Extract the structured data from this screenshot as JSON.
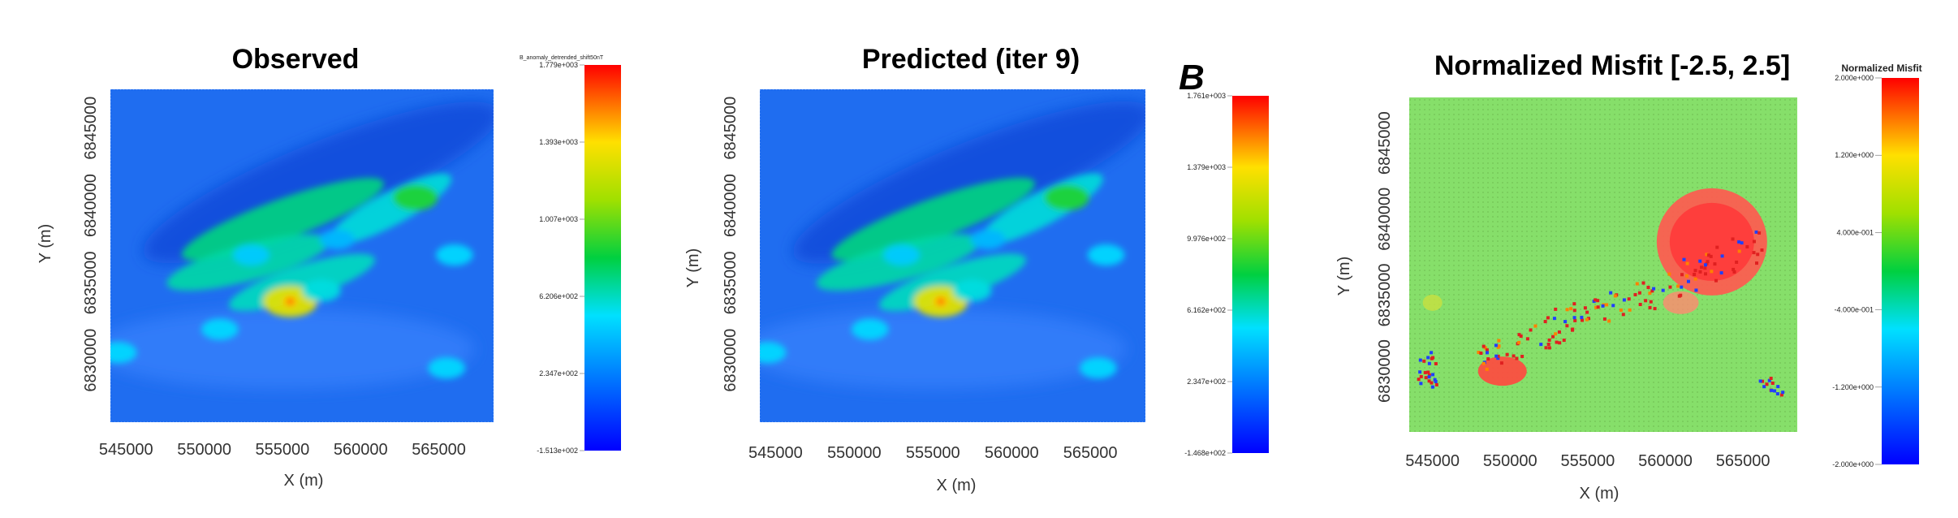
{
  "panel_letter": "B",
  "chart_data": [
    {
      "type": "heatmap",
      "title": "Observed",
      "xlabel": "X (m)",
      "ylabel": "Y (m)",
      "xticks": [
        545000,
        550000,
        555000,
        560000,
        565000
      ],
      "yticks": [
        6830000,
        6835000,
        6840000,
        6845000
      ],
      "xlim": [
        544000,
        568500
      ],
      "ylim": [
        6826000,
        6847500
      ],
      "colorbar": {
        "title": "B_anomaly_detrended_shift50nT",
        "labels": [
          "1.779e+003",
          "1.393e+003",
          "1.007e+003",
          "6.206e+002",
          "2.347e+002",
          "-1.513e+002"
        ],
        "min": -151.3,
        "max": 1779
      },
      "features": [
        {
          "x": 555500,
          "y": 6833800,
          "level": 1.0
        },
        {
          "x": 557500,
          "y": 6834500,
          "level": 0.5
        },
        {
          "x": 551000,
          "y": 6832000,
          "level": 0.45
        },
        {
          "x": 553000,
          "y": 6836800,
          "level": 0.42
        },
        {
          "x": 558500,
          "y": 6837800,
          "level": 0.38
        },
        {
          "x": 563500,
          "y": 6840500,
          "level": 0.7
        },
        {
          "x": 566000,
          "y": 6836800,
          "level": 0.45
        },
        {
          "x": 565500,
          "y": 6829500,
          "level": 0.45
        },
        {
          "x": 544500,
          "y": 6830500,
          "level": 0.45
        }
      ]
    },
    {
      "type": "heatmap",
      "title": "Predicted (iter 9)",
      "xlabel": "X (m)",
      "ylabel": "Y (m)",
      "xticks": [
        545000,
        550000,
        555000,
        560000,
        565000
      ],
      "yticks": [
        6830000,
        6835000,
        6840000,
        6845000
      ],
      "xlim": [
        544000,
        568500
      ],
      "ylim": [
        6826000,
        6847500
      ],
      "colorbar": {
        "title": "",
        "labels": [
          "1.761e+003",
          "1.379e+003",
          "9.976e+002",
          "6.162e+002",
          "2.347e+002",
          "-1.468e+002"
        ],
        "min": -146.8,
        "max": 1761
      },
      "features": [
        {
          "x": 555500,
          "y": 6833800,
          "level": 1.0
        },
        {
          "x": 557500,
          "y": 6834500,
          "level": 0.5
        },
        {
          "x": 551000,
          "y": 6832000,
          "level": 0.45
        },
        {
          "x": 553000,
          "y": 6836800,
          "level": 0.42
        },
        {
          "x": 558500,
          "y": 6837800,
          "level": 0.38
        },
        {
          "x": 563500,
          "y": 6840500,
          "level": 0.7
        },
        {
          "x": 566000,
          "y": 6836800,
          "level": 0.45
        },
        {
          "x": 565500,
          "y": 6829500,
          "level": 0.45
        },
        {
          "x": 544500,
          "y": 6830500,
          "level": 0.45
        }
      ]
    },
    {
      "type": "heatmap",
      "title": "Normalized Misfit [-2.5, 2.5]",
      "xlabel": "X (m)",
      "ylabel": "Y (m)",
      "xticks": [
        545000,
        550000,
        555000,
        560000,
        565000
      ],
      "yticks": [
        6830000,
        6835000,
        6840000,
        6845000
      ],
      "xlim": [
        543500,
        568500
      ],
      "ylim": [
        6826000,
        6848000
      ],
      "colorbar": {
        "title": "Normalized Misfit",
        "labels": [
          "2.000e+000",
          "1.200e+000",
          "4.000e-001",
          "-4.000e-001",
          "-1.200e+000",
          "-2.000e+000"
        ],
        "min": -2.0,
        "max": 2.0
      },
      "features": [
        {
          "x": 563000,
          "y": 6838500,
          "level": 1.6
        },
        {
          "x": 549500,
          "y": 6830000,
          "level": 1.5
        },
        {
          "x": 561000,
          "y": 6834500,
          "level": 0.9
        },
        {
          "x": 545000,
          "y": 6834500,
          "level": 0.8
        }
      ]
    }
  ]
}
